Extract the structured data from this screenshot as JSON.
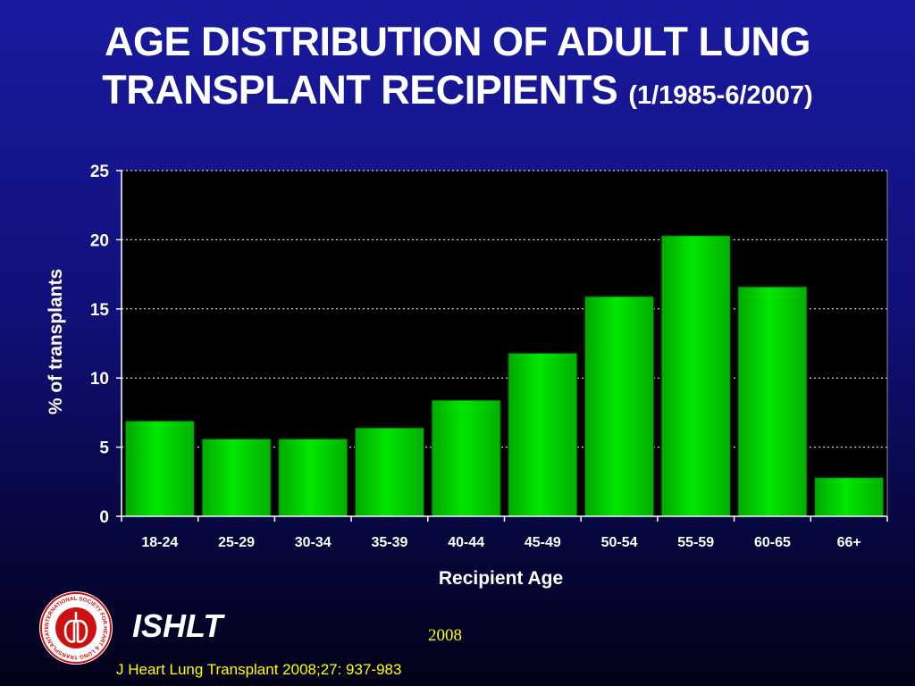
{
  "title": {
    "main_line1": "AGE DISTRIBUTION OF ADULT LUNG",
    "main_line2": "TRANSPLANT RECIPIENTS",
    "date_range": "(1/1985-6/2007)"
  },
  "chart_data": {
    "type": "bar",
    "categories": [
      "18-24",
      "25-29",
      "30-34",
      "35-39",
      "40-44",
      "45-49",
      "50-54",
      "55-59",
      "60-65",
      "66+"
    ],
    "values": [
      6.9,
      5.6,
      5.6,
      6.4,
      8.4,
      11.8,
      15.9,
      20.3,
      16.6,
      2.8
    ],
    "xlabel": "Recipient Age",
    "ylabel": "% of transplants",
    "ylim": [
      0,
      25
    ],
    "yticks": [
      0,
      5,
      10,
      15,
      20,
      25
    ],
    "grid": "horizontal dotted",
    "colors": {
      "bar": "#00e600",
      "plot_background": "#000000",
      "gridline": "#ffffff",
      "page_background": "#10107a"
    }
  },
  "footer": {
    "org": "ISHLT",
    "year": "2008",
    "citation": "J Heart Lung Transplant 2008;27: 937-983",
    "logo_text": "INTERNATIONAL SOCIETY FOR HEART & LUNG TRANSPLANTATION",
    "logo_icon": "ishlt-seal-icon",
    "colors": {
      "accent_text": "#ffff00",
      "logo_red": "#cc1111"
    }
  }
}
